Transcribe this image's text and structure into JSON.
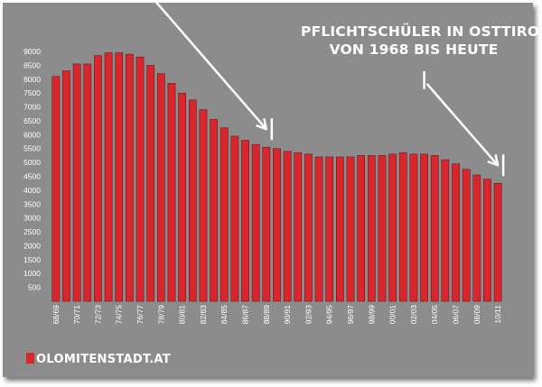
{
  "title": {
    "line1": "PFLICHTSCHÜLER IN OSTTIROL",
    "line2": "VON 1968 BIS HEUTE"
  },
  "brand": "OLOMITENSTADT.AT",
  "colors": {
    "background": "#8c8c8c",
    "bar": "#d9262c",
    "text": "#ffffff",
    "arrow": "#ffffff"
  },
  "chart_data": {
    "type": "bar",
    "ylim": [
      0,
      9000
    ],
    "yticks": [
      500,
      1000,
      1500,
      2000,
      2500,
      3000,
      3500,
      4000,
      4500,
      5000,
      5500,
      6000,
      6500,
      7000,
      7500,
      8000,
      8500,
      9000
    ],
    "x_tick_labels": [
      "68/69",
      "70/71",
      "72/73",
      "74/75",
      "76/77",
      "78/79",
      "80/81",
      "82/83",
      "84/85",
      "86/87",
      "88/89",
      "90/91",
      "92/93",
      "94/95",
      "96/97",
      "98/99",
      "00/01",
      "02/03",
      "04/05",
      "06/07",
      "08/09",
      "10/11"
    ],
    "categories": [
      "68/69",
      "69/70",
      "70/71",
      "71/72",
      "72/73",
      "73/74",
      "74/75",
      "75/76",
      "76/77",
      "77/78",
      "78/79",
      "79/80",
      "80/81",
      "81/82",
      "82/83",
      "83/84",
      "84/85",
      "85/86",
      "86/87",
      "87/88",
      "88/89",
      "89/90",
      "90/91",
      "91/92",
      "92/93",
      "93/94",
      "94/95",
      "95/96",
      "96/97",
      "97/98",
      "98/99",
      "99/00",
      "00/01",
      "01/02",
      "02/03",
      "03/04",
      "04/05",
      "05/06",
      "06/07",
      "07/08",
      "08/09",
      "09/10",
      "10/11"
    ],
    "values": [
      8100,
      8300,
      8550,
      8550,
      8850,
      8950,
      8950,
      8900,
      8800,
      8500,
      8200,
      7850,
      7500,
      7250,
      6900,
      6550,
      6250,
      5950,
      5800,
      5650,
      5550,
      5500,
      5400,
      5350,
      5300,
      5200,
      5200,
      5200,
      5200,
      5250,
      5250,
      5250,
      5300,
      5350,
      5300,
      5300,
      5250,
      5100,
      4950,
      4750,
      4550,
      4400,
      4250
    ],
    "legend": "none",
    "grid": false
  },
  "annotations": {
    "arrows": [
      {
        "from": "76/77",
        "to": "88/89",
        "markers": [
          "76/77",
          "88/89"
        ]
      },
      {
        "from": "03/04",
        "to": "10/11",
        "markers": [
          "03/04",
          "10/11"
        ]
      }
    ]
  }
}
